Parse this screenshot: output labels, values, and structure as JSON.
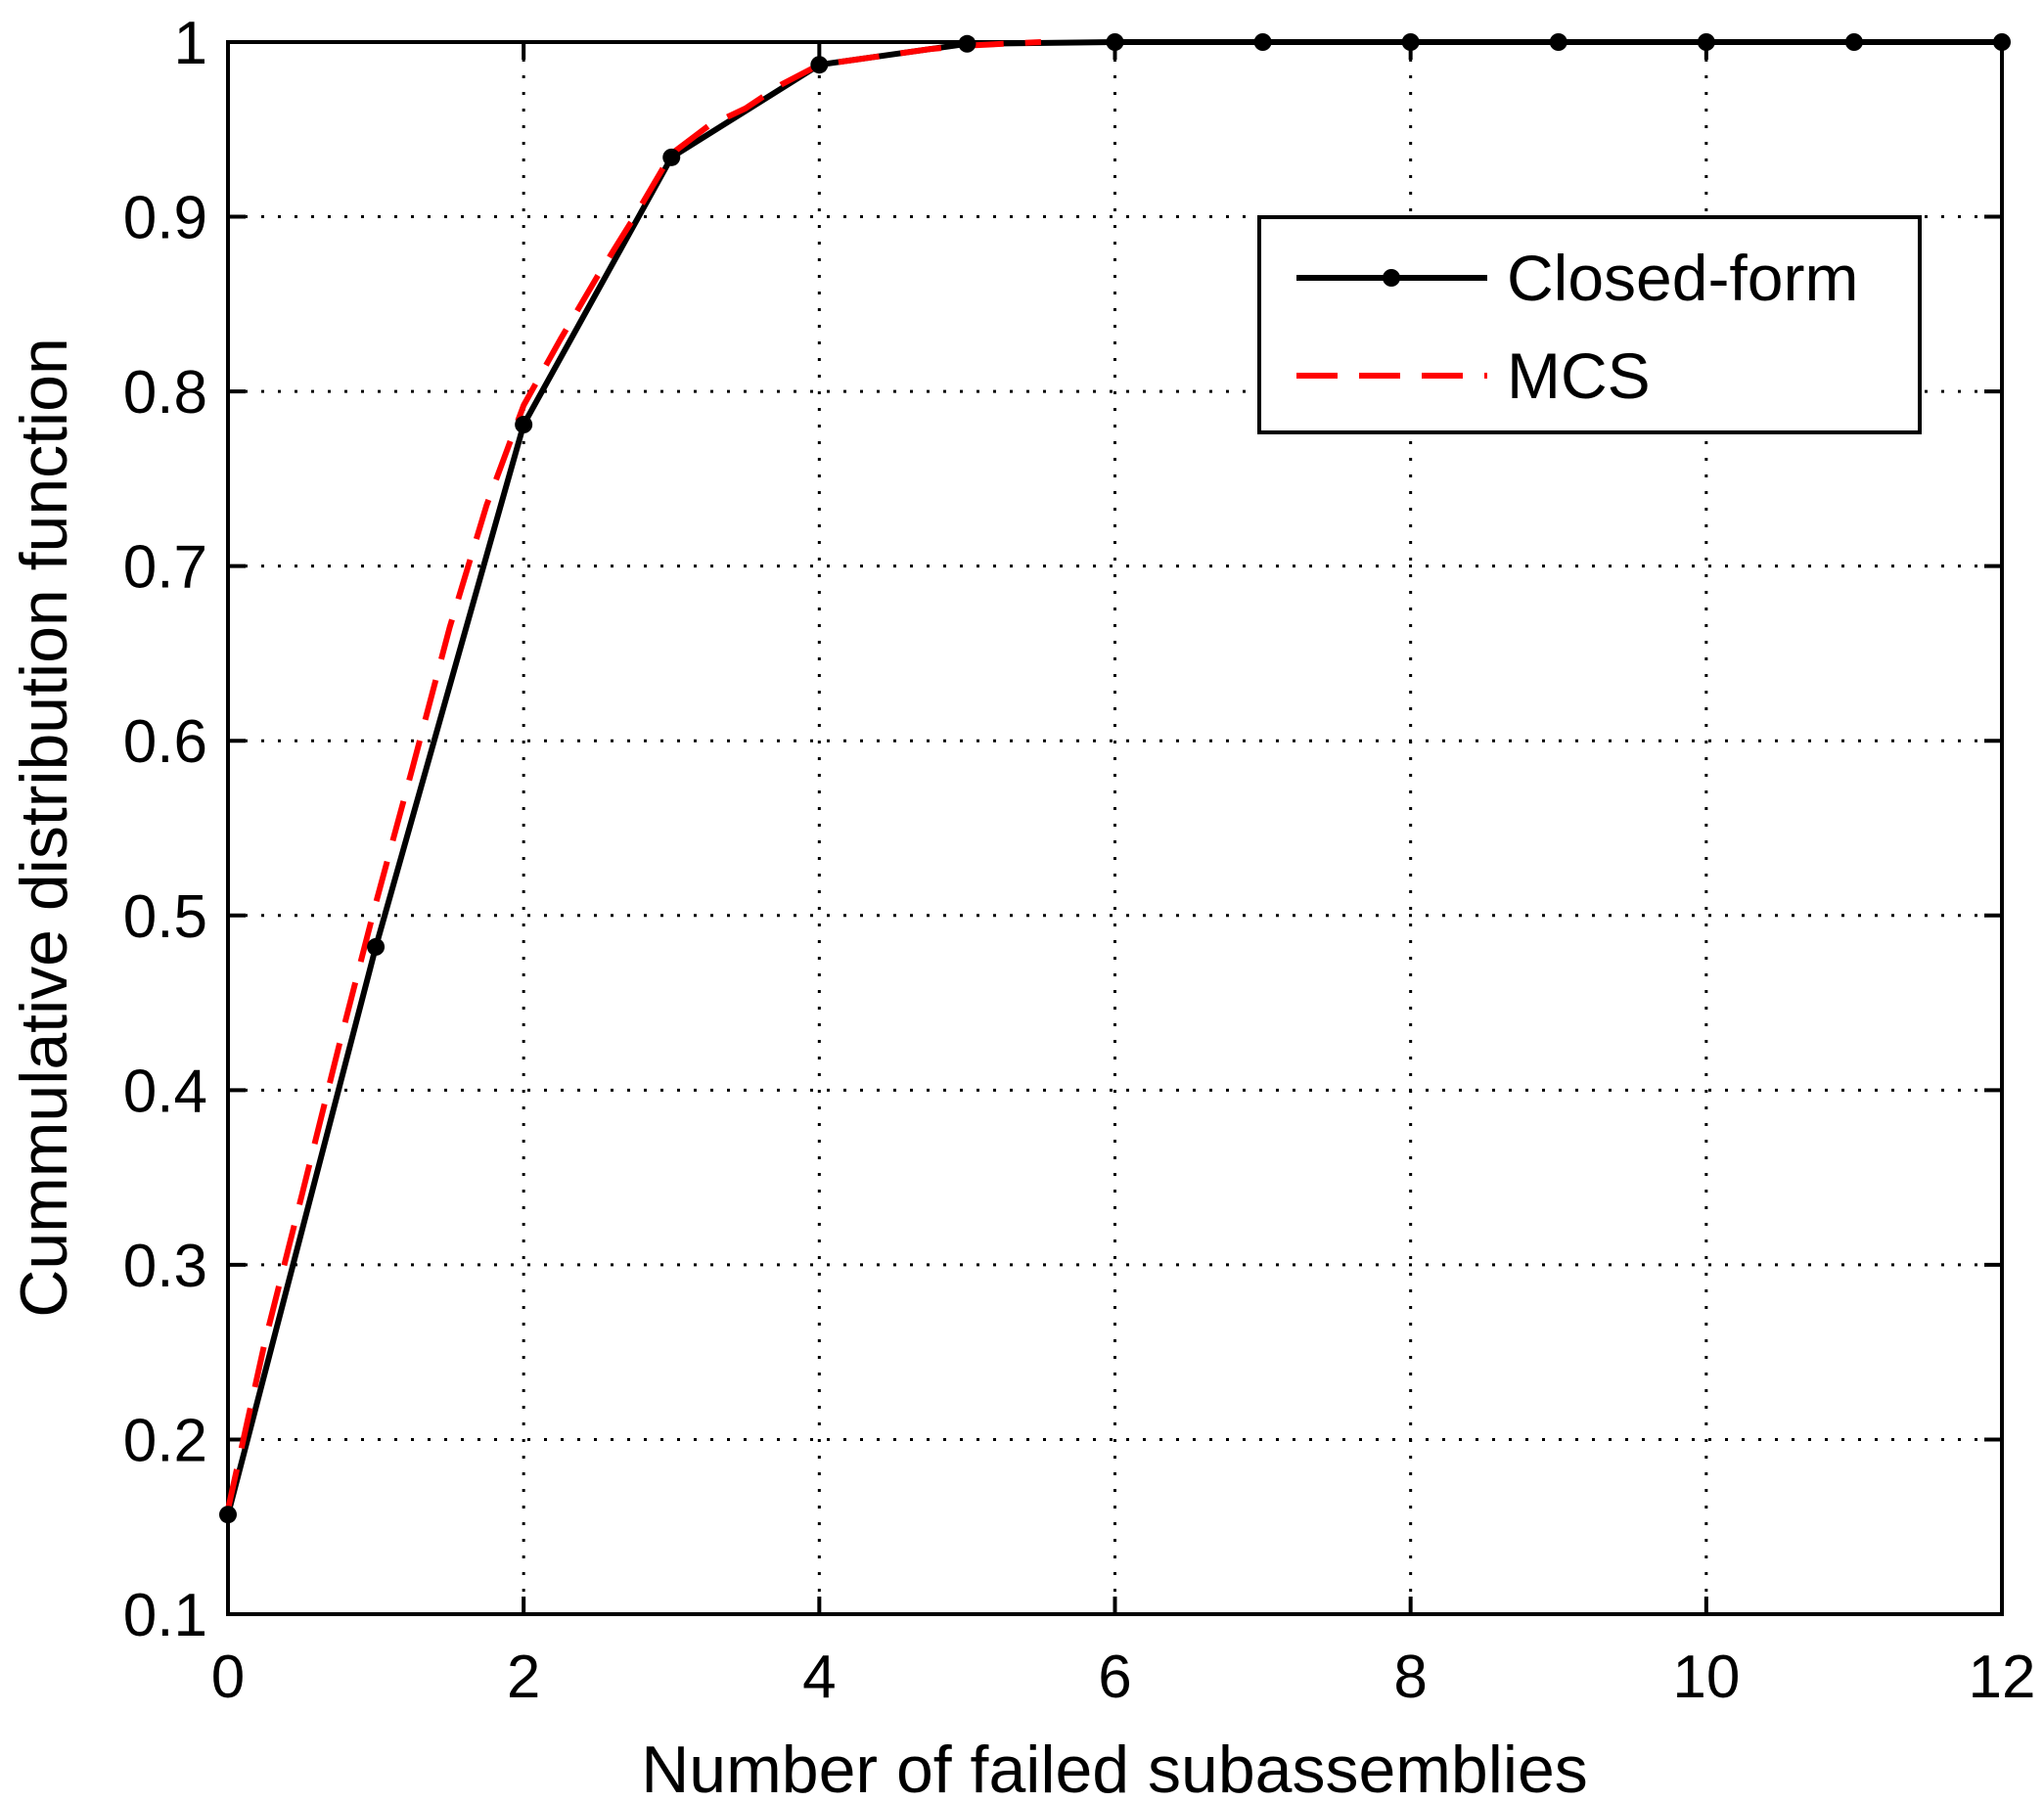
{
  "chart_data": {
    "type": "line",
    "xlabel": "Number of failed subassemblies",
    "ylabel": "Cummulative distribution function",
    "xlim": [
      0,
      12
    ],
    "ylim": [
      0.1,
      1
    ],
    "x_ticks": [
      "0",
      "2",
      "4",
      "6",
      "8",
      "10",
      "12"
    ],
    "y_ticks": [
      "0.1",
      "0.2",
      "0.3",
      "0.4",
      "0.5",
      "0.6",
      "0.7",
      "0.8",
      "0.9",
      "1"
    ],
    "grid": true,
    "legend_position": "top-right",
    "series": [
      {
        "name": "Closed-form",
        "style": "solid line with dot markers",
        "color": "#000000",
        "x": [
          0,
          1,
          2,
          3,
          4,
          5,
          6,
          7,
          8,
          9,
          10,
          11,
          12
        ],
        "y": [
          0.157,
          0.482,
          0.781,
          0.934,
          0.987,
          0.999,
          1.0,
          1.0,
          1.0,
          1.0,
          1.0,
          1.0,
          1.0
        ]
      },
      {
        "name": "MCS",
        "style": "dashed line",
        "color": "#ff0000",
        "x": [
          0,
          0.25,
          0.5,
          0.75,
          1.0,
          1.25,
          1.5,
          1.75,
          2.0,
          2.25,
          2.5,
          2.75,
          3.0,
          3.25,
          3.5,
          3.75,
          4.0,
          4.25,
          4.5,
          4.75,
          5.0,
          5.25,
          5.5
        ],
        "y": [
          0.16,
          0.256,
          0.34,
          0.425,
          0.507,
          0.585,
          0.665,
          0.735,
          0.792,
          0.83,
          0.866,
          0.9,
          0.936,
          0.952,
          0.962,
          0.976,
          0.987,
          0.99,
          0.993,
          0.996,
          0.998,
          0.999,
          1.0
        ]
      }
    ]
  },
  "colors": {
    "closed_form": "#000000",
    "mcs": "#ff0000",
    "grid": "#000000",
    "background": "#ffffff"
  }
}
